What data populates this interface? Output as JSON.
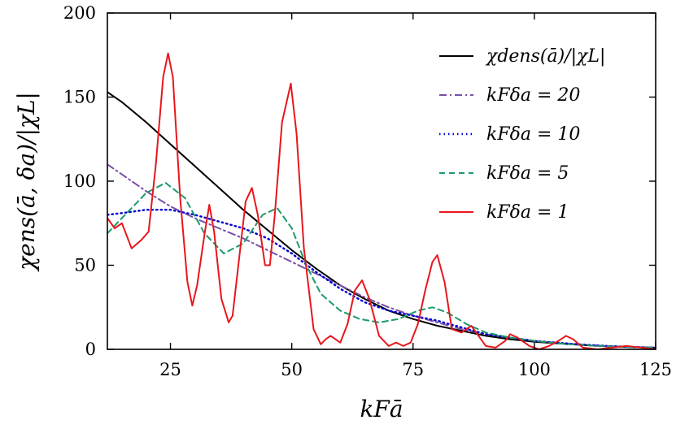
{
  "chart_data": {
    "type": "line",
    "xlabel": "kFā",
    "ylabel": "χens(ā, δa)/|χL|",
    "xlim": [
      12,
      125
    ],
    "ylim": [
      0,
      200
    ],
    "x_ticks": [
      25,
      50,
      75,
      100,
      125
    ],
    "y_ticks": [
      0,
      50,
      100,
      150,
      200
    ],
    "grid": false,
    "legend_position": "top-right",
    "series": [
      {
        "name": "χdens(ā)/|χL|",
        "color": "#000000",
        "style": "solid",
        "x": [
          12,
          15,
          20,
          25,
          30,
          35,
          40,
          45,
          50,
          55,
          60,
          65,
          70,
          75,
          80,
          85,
          90,
          95,
          100,
          105,
          110,
          115,
          120,
          125
        ],
        "y": [
          153,
          147,
          135,
          122,
          109,
          96,
          83,
          71,
          59,
          48,
          38,
          30,
          23,
          18,
          14,
          11,
          8,
          6,
          4.5,
          3.5,
          2.5,
          1.8,
          1.3,
          1
        ]
      },
      {
        "name": "kFδa = 20",
        "color": "#7a4fa8",
        "style": "dashdot",
        "x": [
          12,
          15,
          20,
          25,
          30,
          35,
          40,
          45,
          50,
          55,
          60,
          65,
          70,
          75,
          80,
          85,
          90,
          95,
          100,
          105,
          110,
          115,
          120,
          125
        ],
        "y": [
          110,
          104,
          94,
          85,
          78,
          72,
          66,
          59,
          52,
          45,
          38,
          31,
          25,
          20,
          16,
          12,
          9,
          7,
          5,
          3.8,
          2.8,
          2,
          1.4,
          1
        ]
      },
      {
        "name": "kFδa = 10",
        "color": "#0000d0",
        "style": "dotted",
        "x": [
          12,
          15,
          20,
          25,
          30,
          35,
          40,
          45,
          50,
          55,
          60,
          65,
          70,
          75,
          80,
          85,
          90,
          95,
          100,
          105,
          110,
          115,
          120,
          125
        ],
        "y": [
          80,
          81,
          83,
          83,
          80,
          76,
          72,
          66,
          57,
          46,
          36,
          28,
          23,
          20,
          17,
          13,
          9,
          7,
          5,
          3.8,
          2.8,
          2,
          1.4,
          1
        ]
      },
      {
        "name": "kFδa = 5",
        "color": "#1a9a6a",
        "style": "dashed",
        "x": [
          12,
          15,
          20,
          24,
          28,
          32,
          36,
          40,
          44,
          47,
          50,
          53,
          56,
          60,
          64,
          68,
          72,
          76,
          79,
          82,
          86,
          90,
          95,
          100,
          105,
          110,
          115,
          120,
          125
        ],
        "y": [
          69,
          78,
          93,
          99,
          90,
          69,
          57,
          63,
          80,
          84,
          72,
          50,
          33,
          23,
          18,
          16,
          18,
          23,
          25,
          22,
          15,
          10,
          7,
          5,
          3.5,
          2.5,
          1.8,
          1.3,
          1
        ]
      },
      {
        "name": "kFδa = 1",
        "color": "#e8161c",
        "style": "solid",
        "x": [
          12,
          13.5,
          15,
          17,
          19,
          20.5,
          22,
          23.5,
          24.5,
          25.5,
          27,
          28.5,
          29.5,
          30.5,
          32,
          33,
          34,
          35.5,
          37,
          37.8,
          39,
          40.5,
          41.8,
          43,
          44.5,
          45.5,
          46.5,
          48,
          49.8,
          51,
          52.5,
          54.5,
          56,
          57,
          58,
          60,
          61.5,
          63,
          64.5,
          66,
          68,
          70,
          71.5,
          73,
          74.5,
          76,
          77.5,
          79,
          80,
          81.5,
          83,
          85,
          87,
          88.5,
          90,
          92,
          94,
          95,
          96.5,
          99,
          101,
          103,
          105,
          106.5,
          108,
          110,
          113,
          116,
          119,
          122,
          125
        ],
        "y": [
          78,
          72,
          75,
          60,
          65,
          70,
          110,
          162,
          176,
          162,
          90,
          40,
          26,
          38,
          68,
          86,
          70,
          30,
          16,
          20,
          50,
          88,
          96,
          80,
          50,
          50,
          80,
          135,
          158,
          128,
          60,
          12,
          3,
          6,
          8,
          4,
          15,
          35,
          41,
          30,
          8,
          2,
          4,
          2,
          4,
          15,
          35,
          52,
          56,
          40,
          12,
          10,
          14,
          8,
          2,
          1,
          5,
          9,
          7,
          2,
          0,
          2,
          5,
          8,
          6,
          1,
          0,
          1,
          2,
          1,
          0
        ]
      }
    ]
  }
}
